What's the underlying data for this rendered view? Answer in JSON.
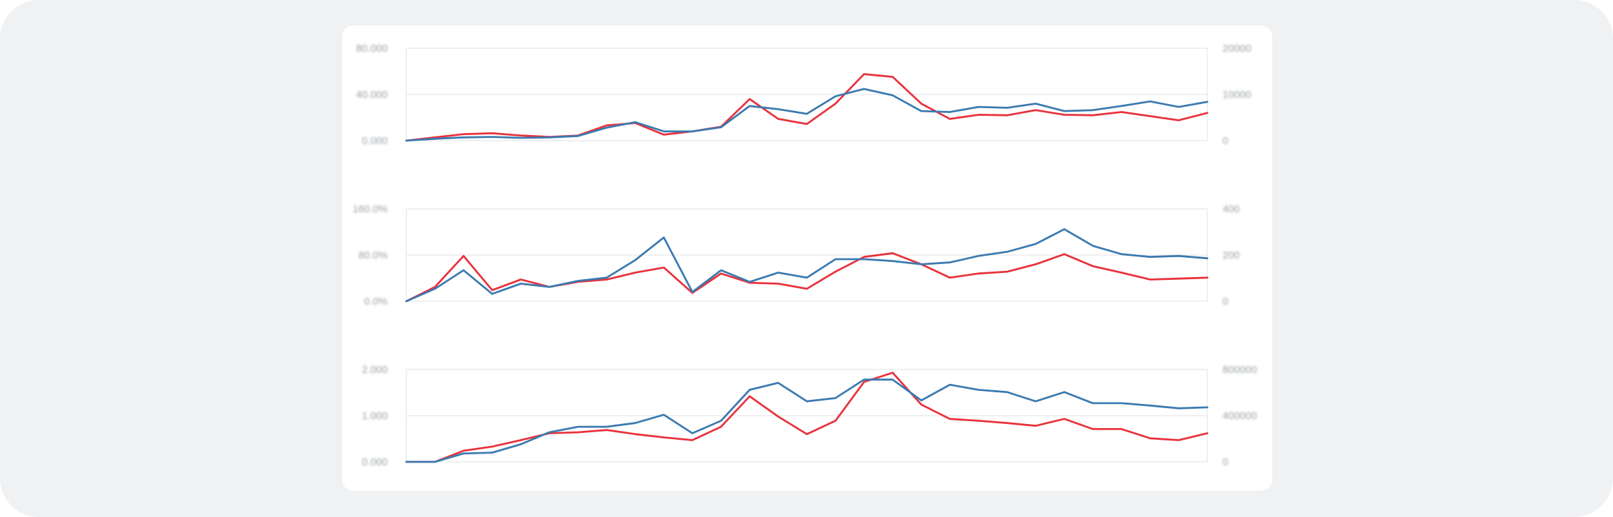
{
  "chart_data": [
    {
      "type": "line",
      "title": "",
      "y_left_ticks": [
        "0.000",
        "40.000",
        "80.000"
      ],
      "y_right_ticks": [
        "0",
        "10000",
        "20000"
      ],
      "ylim_left": [
        0,
        2
      ],
      "ylim_right": [
        0,
        2
      ],
      "grid": true,
      "series": [
        {
          "color": "#e8323c",
          "axis": "left",
          "values": [
            0.0,
            0.07,
            0.14,
            0.16,
            0.11,
            0.08,
            0.11,
            0.33,
            0.38,
            0.13,
            0.2,
            0.3,
            0.9,
            0.47,
            0.36,
            0.8,
            1.44,
            1.38,
            0.8,
            0.47,
            0.56,
            0.55,
            0.66,
            0.56,
            0.55,
            0.62,
            0.53,
            0.44,
            0.6
          ]
        },
        {
          "color": "#3b7ab0",
          "axis": "right",
          "values": [
            0.0,
            0.04,
            0.07,
            0.08,
            0.06,
            0.07,
            0.1,
            0.28,
            0.4,
            0.2,
            0.2,
            0.29,
            0.75,
            0.68,
            0.58,
            0.96,
            1.12,
            0.98,
            0.64,
            0.62,
            0.73,
            0.71,
            0.8,
            0.64,
            0.66,
            0.75,
            0.85,
            0.73,
            0.84
          ]
        }
      ]
    },
    {
      "type": "line",
      "title": "",
      "y_left_ticks": [
        "0.0%",
        "80.0%",
        "160.0%"
      ],
      "y_right_ticks": [
        "0",
        "200",
        "400"
      ],
      "ylim_left": [
        0,
        2
      ],
      "ylim_right": [
        0,
        2
      ],
      "grid": true,
      "series": [
        {
          "color": "#e8323c",
          "axis": "left",
          "values": [
            0.0,
            0.31,
            0.98,
            0.24,
            0.47,
            0.31,
            0.42,
            0.47,
            0.62,
            0.73,
            0.18,
            0.6,
            0.4,
            0.38,
            0.27,
            0.64,
            0.96,
            1.04,
            0.8,
            0.51,
            0.6,
            0.64,
            0.8,
            1.02,
            0.76,
            0.62,
            0.47,
            0.49,
            0.51
          ]
        },
        {
          "color": "#3b7ab0",
          "axis": "right",
          "values": [
            0.0,
            0.27,
            0.67,
            0.16,
            0.38,
            0.31,
            0.44,
            0.51,
            0.89,
            1.38,
            0.2,
            0.67,
            0.42,
            0.62,
            0.51,
            0.91,
            0.91,
            0.87,
            0.8,
            0.84,
            0.98,
            1.07,
            1.24,
            1.56,
            1.2,
            1.02,
            0.96,
            0.98,
            0.93
          ]
        }
      ]
    },
    {
      "type": "line",
      "title": "",
      "y_left_ticks": [
        "0.000",
        "1.000",
        "2.000"
      ],
      "y_right_ticks": [
        "0",
        "400000",
        "800000"
      ],
      "ylim_left": [
        0,
        2
      ],
      "ylim_right": [
        0,
        2
      ],
      "grid": true,
      "series": [
        {
          "color": "#e8323c",
          "axis": "left",
          "values": [
            0.0,
            0.0,
            0.24,
            0.33,
            0.47,
            0.62,
            0.64,
            0.69,
            0.6,
            0.53,
            0.47,
            0.76,
            1.42,
            0.98,
            0.6,
            0.89,
            1.73,
            1.93,
            1.24,
            0.93,
            0.89,
            0.84,
            0.78,
            0.93,
            0.71,
            0.71,
            0.51,
            0.47,
            0.62
          ]
        },
        {
          "color": "#3b7ab0",
          "axis": "right",
          "values": [
            0.0,
            0.0,
            0.18,
            0.2,
            0.38,
            0.64,
            0.76,
            0.76,
            0.84,
            1.02,
            0.62,
            0.89,
            1.56,
            1.71,
            1.31,
            1.38,
            1.78,
            1.78,
            1.33,
            1.67,
            1.56,
            1.51,
            1.31,
            1.51,
            1.27,
            1.27,
            1.22,
            1.16,
            1.18
          ]
        }
      ]
    }
  ]
}
